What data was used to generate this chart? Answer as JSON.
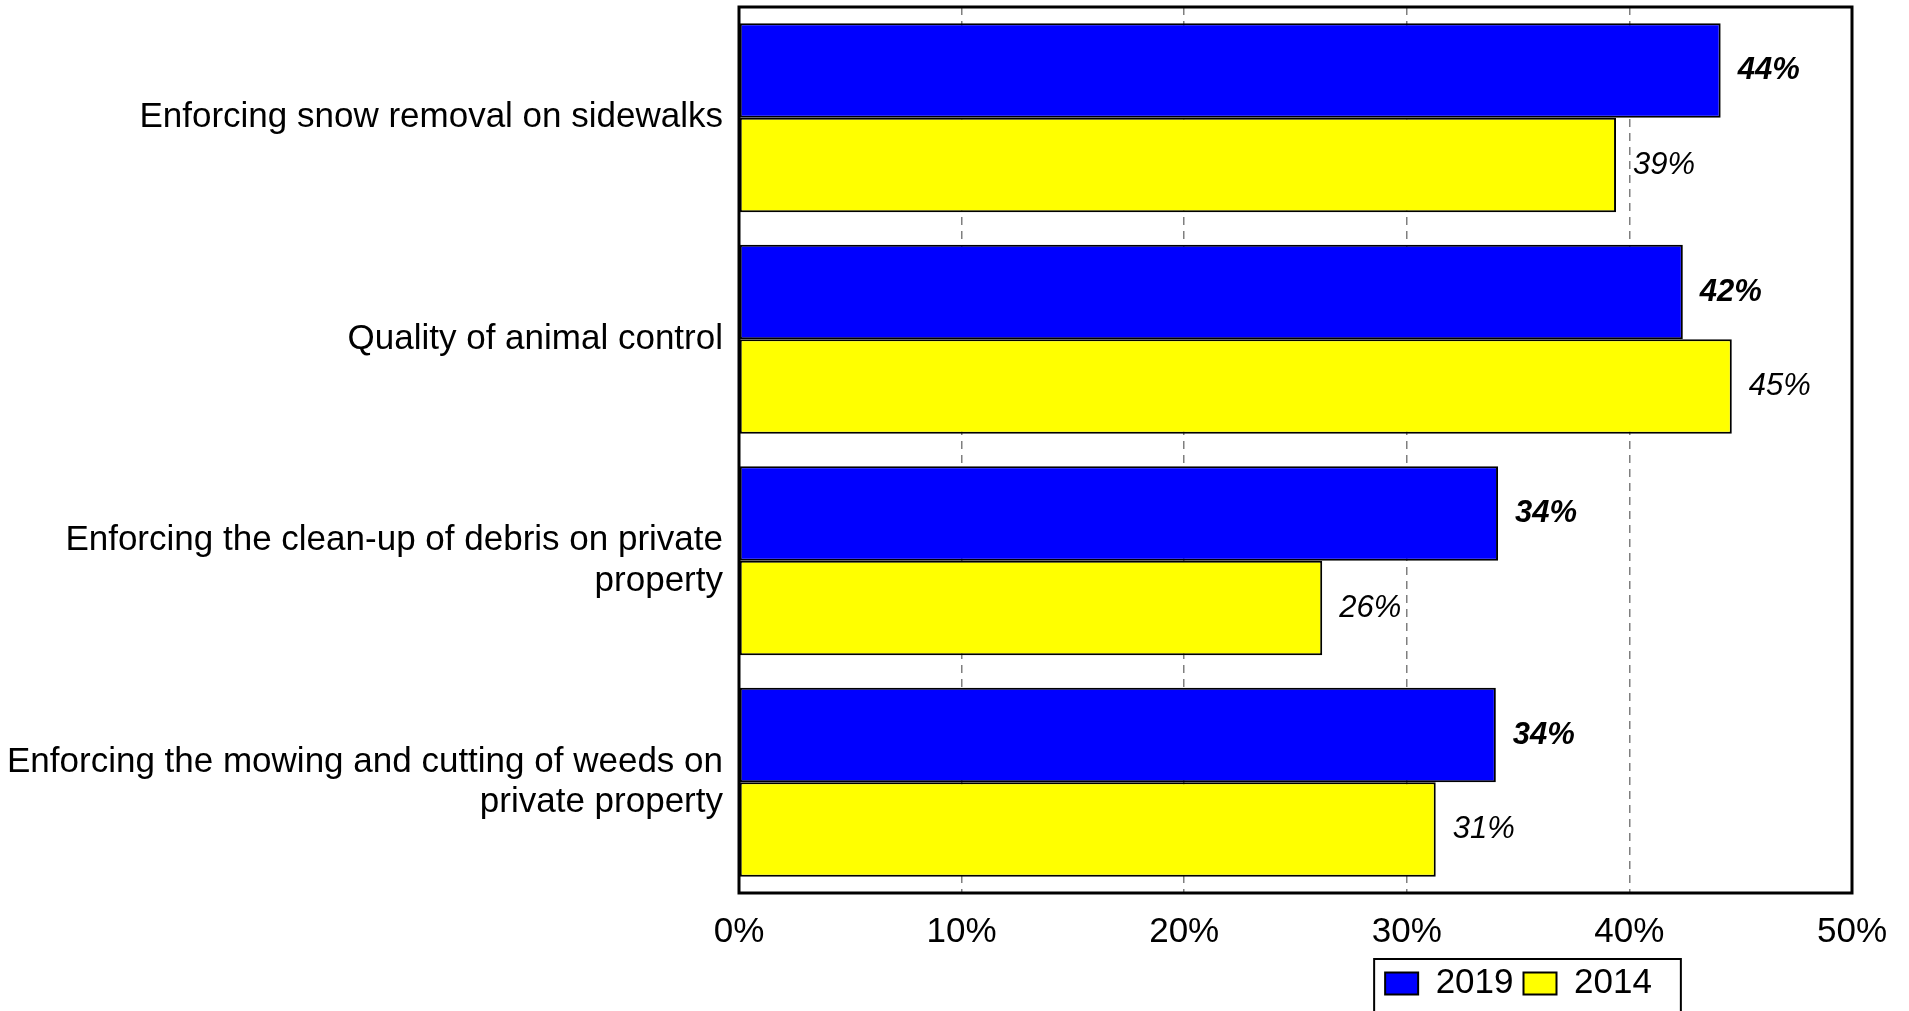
{
  "chart_data": {
    "type": "bar",
    "orientation": "horizontal",
    "categories": [
      "Enforcing snow removal on sidewalks",
      "Quality of animal control",
      "Enforcing the clean-up of debris on private property",
      "Enforcing the mowing and cutting of weeds on private property"
    ],
    "series": [
      {
        "name": "2019",
        "color": "#0000ff",
        "values": [
          44.1,
          42.4,
          34.1,
          34.0
        ],
        "value_labels": [
          "44%",
          "42%",
          "34%",
          "34%"
        ]
      },
      {
        "name": "2014",
        "color": "#ffff00",
        "values": [
          39.4,
          44.6,
          26.2,
          31.3
        ],
        "value_labels": [
          "39%",
          "45%",
          "26%",
          "31%"
        ]
      }
    ],
    "xlim": [
      0,
      50
    ],
    "xticks": [
      {
        "value": 0,
        "label": "0%"
      },
      {
        "value": 10,
        "label": "10%"
      },
      {
        "value": 20,
        "label": "20%"
      },
      {
        "value": 30,
        "label": "30%"
      },
      {
        "value": 40,
        "label": "40%"
      },
      {
        "value": 50,
        "label": "50%"
      }
    ],
    "grid": "x",
    "legend": "bottom"
  }
}
